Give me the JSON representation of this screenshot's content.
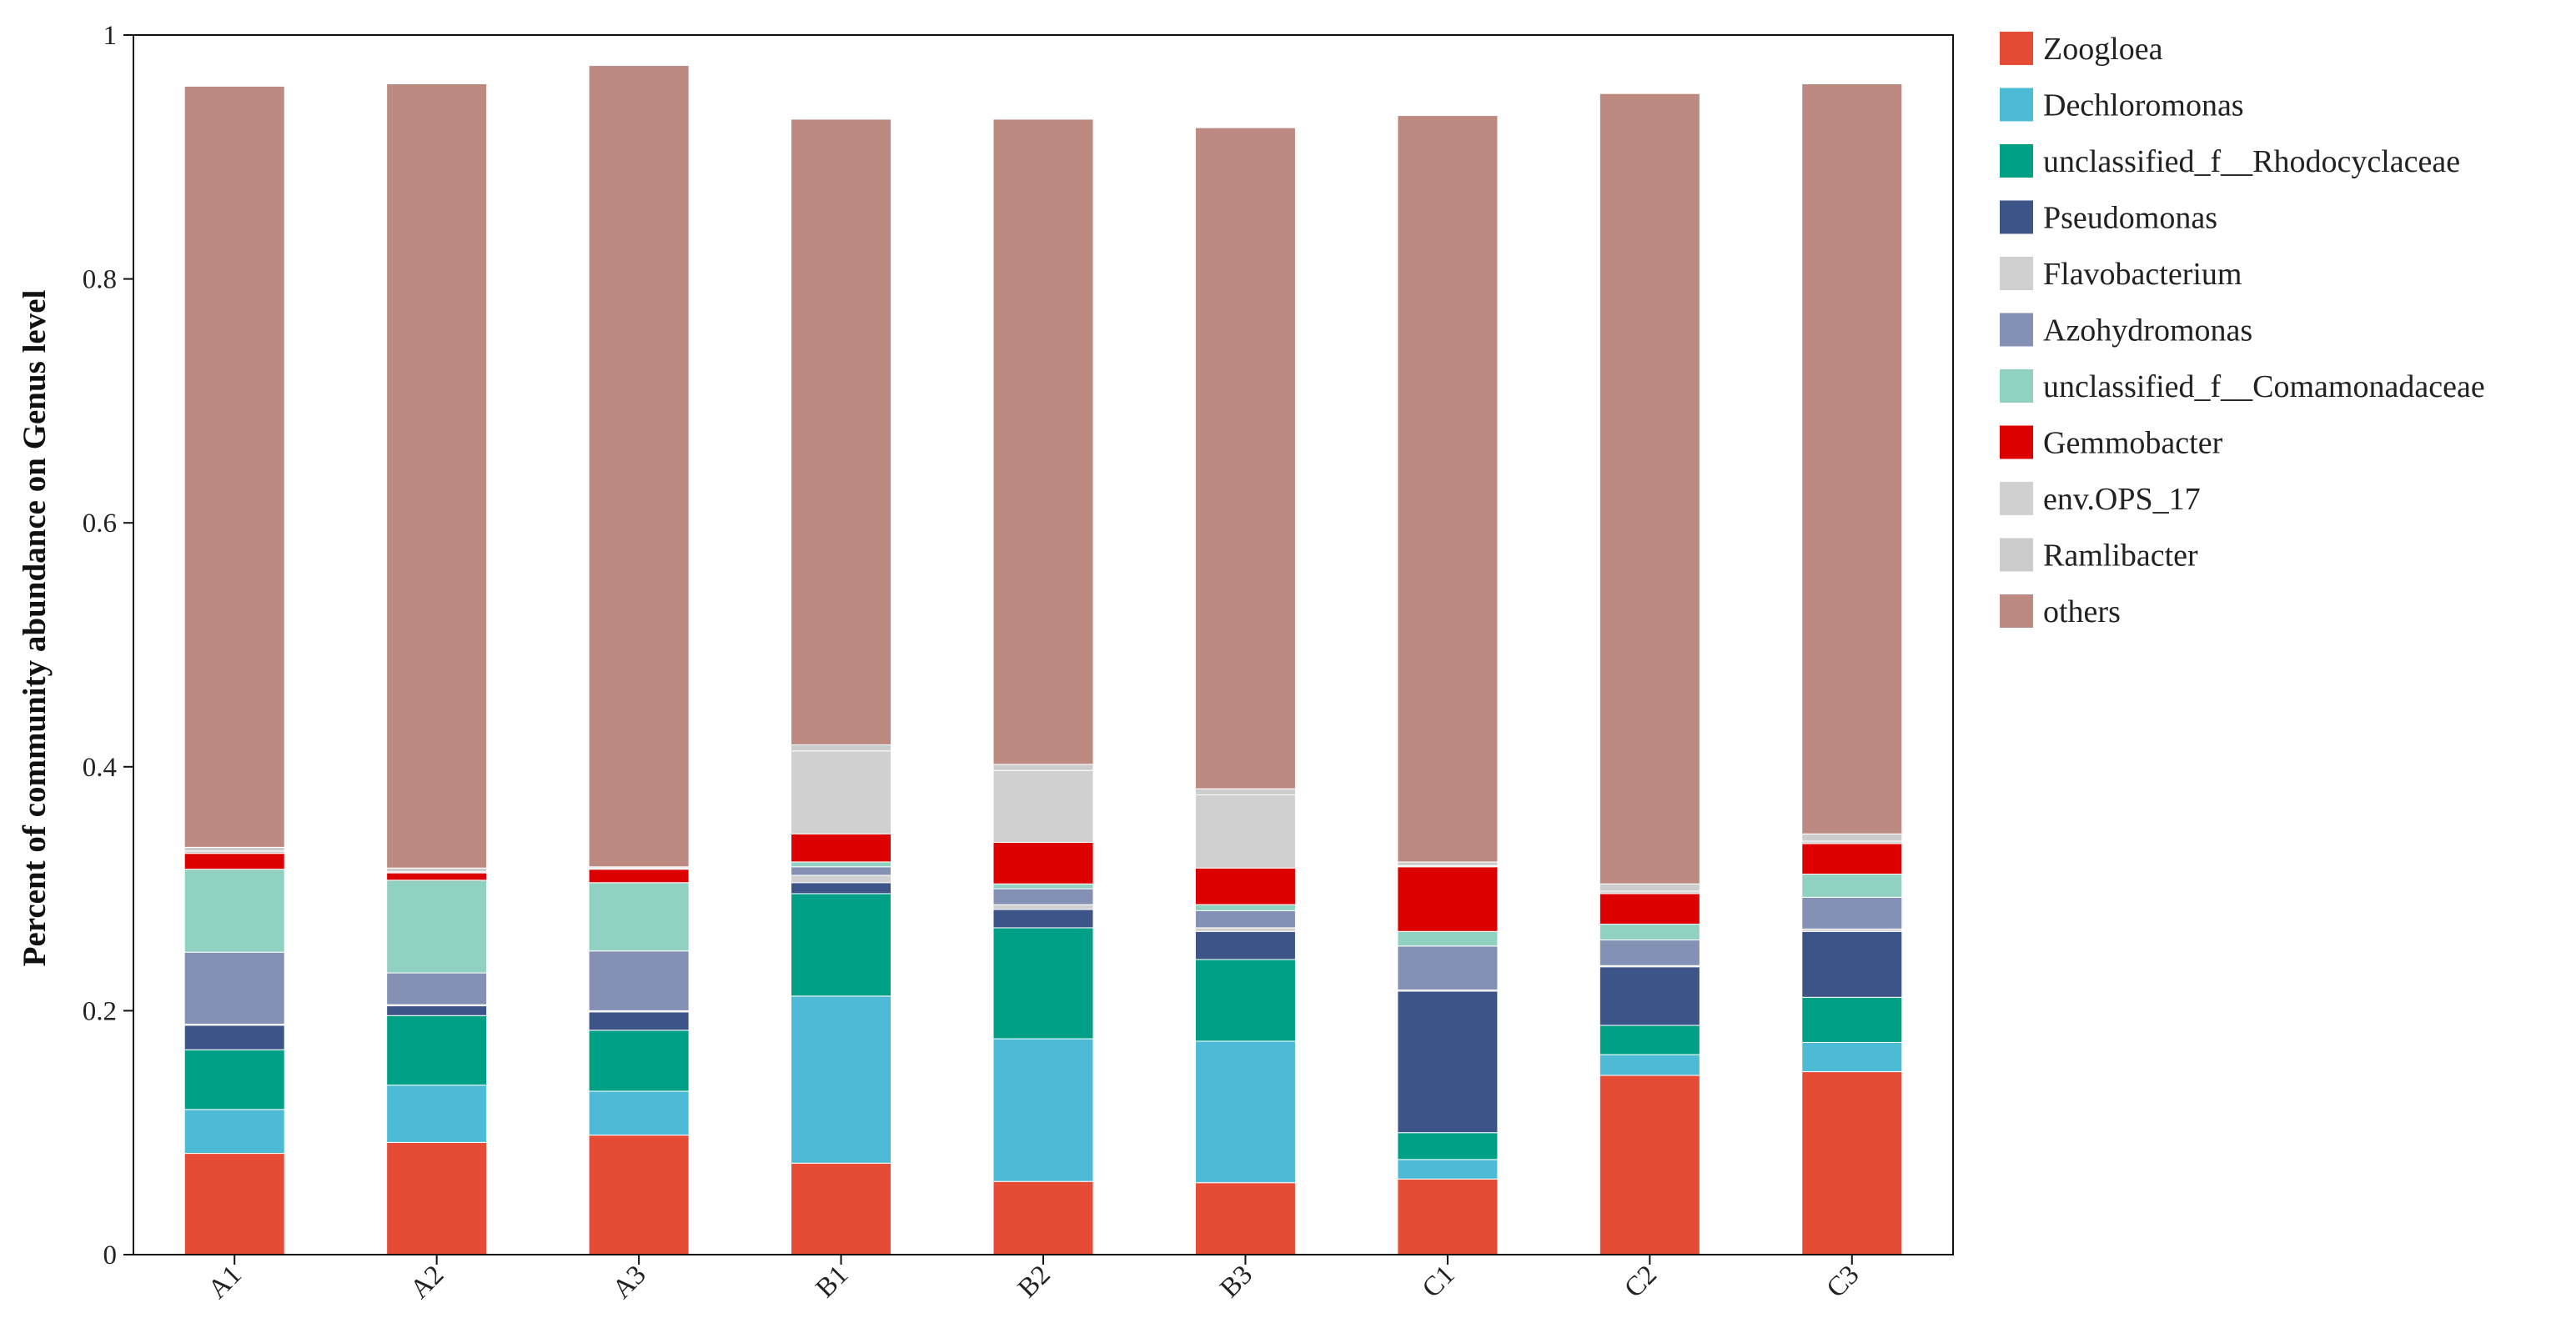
{
  "chart_data": {
    "type": "bar",
    "stacked": true,
    "title": "",
    "xlabel": "",
    "ylabel": "Percent of community abundance on Genus level",
    "ylim": [
      0,
      1
    ],
    "y_ticks": [
      "0",
      "0.2",
      "0.4",
      "0.6",
      "0.8",
      "1"
    ],
    "categories": [
      "A1",
      "A2",
      "A3",
      "B1",
      "B2",
      "B3",
      "C1",
      "C2",
      "C3"
    ],
    "legend_position": "right",
    "grid": false,
    "series": [
      {
        "name": "Zoogloea",
        "color": "#e64b35",
        "values": [
          0.083,
          0.092,
          0.098,
          0.075,
          0.06,
          0.059,
          0.062,
          0.147,
          0.15
        ]
      },
      {
        "name": "Dechloromonas",
        "color": "#4dbbd5",
        "values": [
          0.036,
          0.047,
          0.036,
          0.137,
          0.117,
          0.116,
          0.016,
          0.017,
          0.024
        ]
      },
      {
        "name": "unclassified_f__Rhodocyclaceae",
        "color": "#00a087",
        "values": [
          0.049,
          0.057,
          0.05,
          0.084,
          0.091,
          0.067,
          0.022,
          0.024,
          0.037
        ]
      },
      {
        "name": "Pseudomonas",
        "color": "#3c5488",
        "values": [
          0.02,
          0.008,
          0.015,
          0.009,
          0.015,
          0.023,
          0.116,
          0.048,
          0.054
        ]
      },
      {
        "name": "Flavobacterium",
        "color": "#d0d0d0",
        "values": [
          0.001,
          0.001,
          0.001,
          0.006,
          0.004,
          0.003,
          0.001,
          0.001,
          0.002
        ]
      },
      {
        "name": "Azohydromonas",
        "color": "#8491b4",
        "values": [
          0.059,
          0.026,
          0.049,
          0.007,
          0.013,
          0.014,
          0.036,
          0.021,
          0.026
        ]
      },
      {
        "name": "unclassified_f__Comamonadaceae",
        "color": "#91d1c2",
        "values": [
          0.068,
          0.076,
          0.056,
          0.004,
          0.004,
          0.005,
          0.012,
          0.013,
          0.019
        ]
      },
      {
        "name": "Gemmobacter",
        "color": "#dc0000",
        "values": [
          0.013,
          0.006,
          0.011,
          0.023,
          0.034,
          0.03,
          0.053,
          0.025,
          0.025
        ]
      },
      {
        "name": "env.OPS_17",
        "color": "#d0d0d0",
        "values": [
          0.002,
          0.001,
          0.001,
          0.068,
          0.059,
          0.06,
          0.001,
          0.002,
          0.002
        ]
      },
      {
        "name": "Ramlibacter",
        "color": "#cccccc",
        "values": [
          0.003,
          0.003,
          0.001,
          0.005,
          0.005,
          0.005,
          0.003,
          0.006,
          0.006
        ]
      },
      {
        "name": "others",
        "color": "#bc8a80",
        "values": [
          0.624,
          0.643,
          0.657,
          0.513,
          0.529,
          0.542,
          0.612,
          0.648,
          0.615
        ]
      }
    ]
  }
}
